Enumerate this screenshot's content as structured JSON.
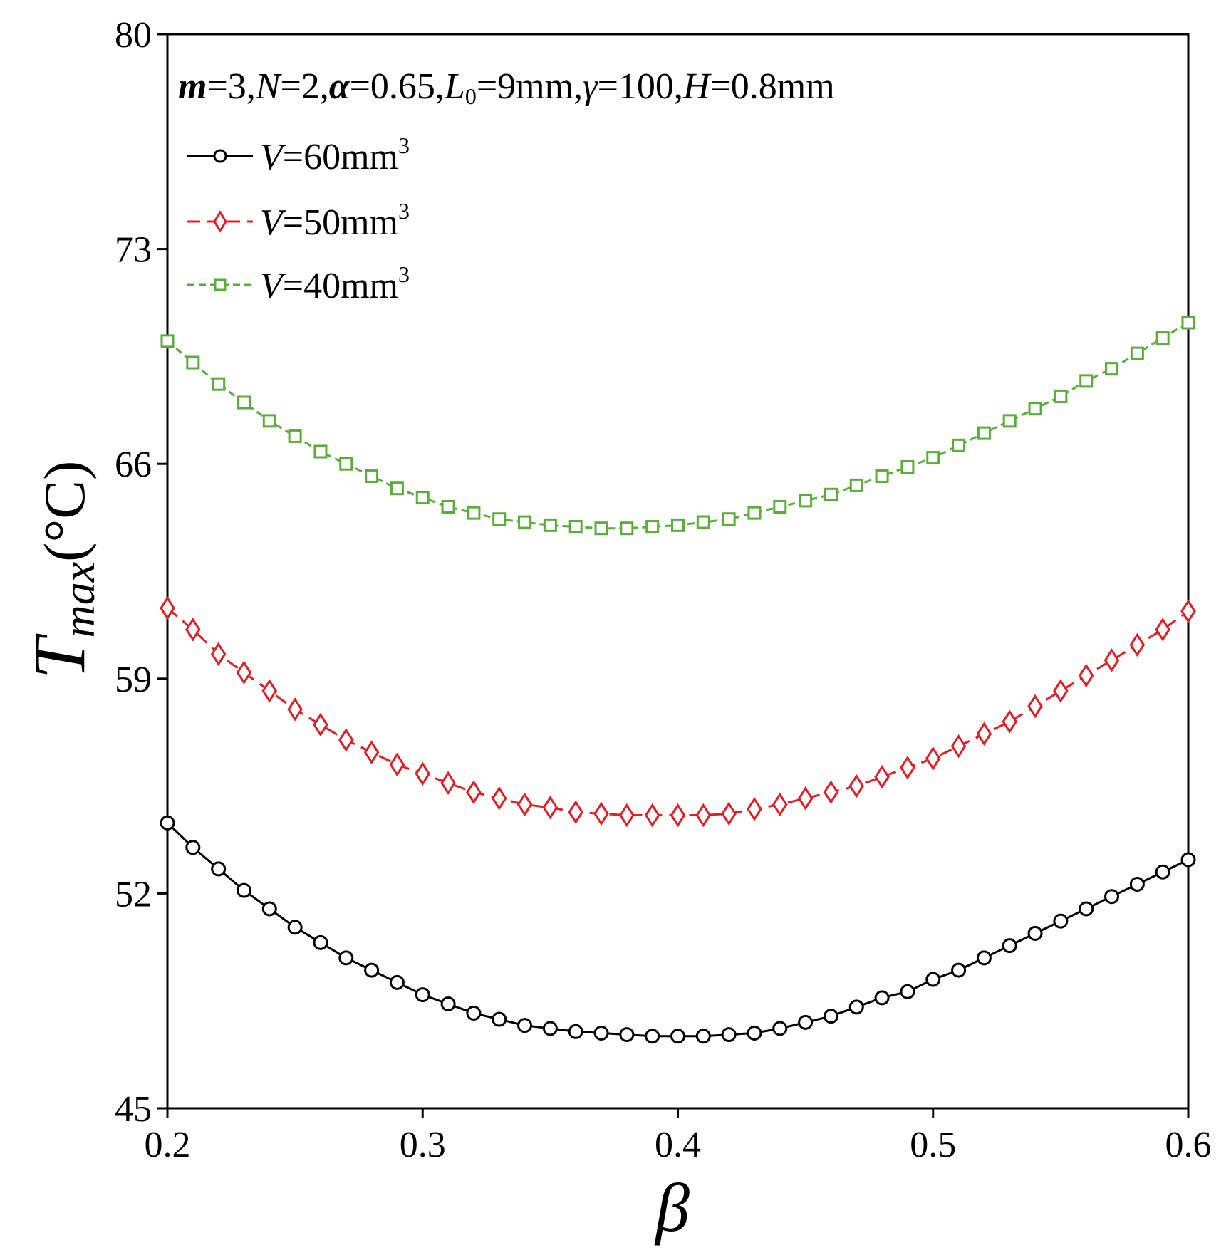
{
  "chart_data": {
    "type": "line",
    "title": "",
    "xlabel": "β",
    "ylabel_main": "T",
    "ylabel_sub": "max",
    "ylabel_unit": "(°C)",
    "xlim": [
      0.2,
      0.6
    ],
    "ylim": [
      45,
      80
    ],
    "x_ticks": [
      0.2,
      0.3,
      0.4,
      0.5,
      0.6
    ],
    "x_tick_labels": [
      "0.2",
      "0.3",
      "0.4",
      "0.5",
      "0.6"
    ],
    "y_ticks": [
      45,
      52,
      59,
      66,
      73,
      80
    ],
    "y_tick_labels": [
      "45",
      "52",
      "59",
      "66",
      "73",
      "80"
    ],
    "grid": false,
    "legend_position": "top-left",
    "annotation": {
      "parts": [
        {
          "text": "m",
          "style": "italic"
        },
        {
          "text": "=3,",
          "style": "normal"
        },
        {
          "text": "N",
          "style": "italic"
        },
        {
          "text": "=2,",
          "style": "normal"
        },
        {
          "text": "α",
          "style": "italic"
        },
        {
          "text": "=0.65,",
          "style": "normal"
        },
        {
          "text": "L",
          "style": "italic"
        },
        {
          "text": "0",
          "style": "sub"
        },
        {
          "text": "=9mm,",
          "style": "normal"
        },
        {
          "text": "γ",
          "style": "italic"
        },
        {
          "text": "=100,",
          "style": "normal"
        },
        {
          "text": "H",
          "style": "italic"
        },
        {
          "text": "=0.8mm",
          "style": "normal"
        }
      ]
    },
    "x": [
      0.2,
      0.21,
      0.22,
      0.23,
      0.24,
      0.25,
      0.26,
      0.27,
      0.28,
      0.29,
      0.3,
      0.31,
      0.32,
      0.33,
      0.34,
      0.35,
      0.36,
      0.37,
      0.38,
      0.39,
      0.4,
      0.41,
      0.42,
      0.43,
      0.44,
      0.45,
      0.46,
      0.47,
      0.48,
      0.49,
      0.5,
      0.51,
      0.52,
      0.53,
      0.54,
      0.55,
      0.56,
      0.57,
      0.58,
      0.59,
      0.6
    ],
    "series": [
      {
        "name": "V=60mm3",
        "legend_var": "V",
        "legend_value": "=60mm",
        "legend_sup": "3",
        "color": "#000000",
        "marker": "circle",
        "line_style": "solid",
        "values": [
          54.3,
          53.5,
          52.8,
          52.1,
          51.5,
          50.9,
          50.4,
          49.9,
          49.5,
          49.1,
          48.7,
          48.4,
          48.1,
          47.9,
          47.7,
          47.6,
          47.5,
          47.45,
          47.4,
          47.35,
          47.35,
          47.35,
          47.4,
          47.45,
          47.6,
          47.8,
          48.0,
          48.3,
          48.6,
          48.8,
          49.2,
          49.5,
          49.9,
          50.3,
          50.7,
          51.1,
          51.5,
          51.9,
          52.3,
          52.7,
          53.1
        ]
      },
      {
        "name": "V=50mm3",
        "legend_var": "V",
        "legend_value": "=50mm",
        "legend_sup": "3",
        "color": "#e51c23",
        "marker": "diamond",
        "line_style": "dashed",
        "values": [
          61.3,
          60.6,
          59.8,
          59.2,
          58.6,
          58.0,
          57.5,
          57.0,
          56.6,
          56.2,
          55.9,
          55.6,
          55.3,
          55.1,
          54.9,
          54.8,
          54.65,
          54.6,
          54.55,
          54.55,
          54.55,
          54.55,
          54.6,
          54.75,
          54.9,
          55.1,
          55.3,
          55.5,
          55.8,
          56.1,
          56.4,
          56.8,
          57.2,
          57.6,
          58.1,
          58.6,
          59.1,
          59.6,
          60.1,
          60.6,
          61.2
        ]
      },
      {
        "name": "V=40mm3",
        "legend_var": "V",
        "legend_value": "=40mm",
        "legend_sup": "3",
        "color": "#5aad38",
        "marker": "square",
        "line_style": "dashed",
        "values": [
          70.0,
          69.3,
          68.6,
          68.0,
          67.4,
          66.9,
          66.4,
          66.0,
          65.6,
          65.2,
          64.9,
          64.6,
          64.4,
          64.2,
          64.1,
          64.0,
          63.95,
          63.9,
          63.9,
          63.95,
          64.0,
          64.1,
          64.2,
          64.4,
          64.6,
          64.8,
          65.0,
          65.3,
          65.6,
          65.9,
          66.2,
          66.6,
          67.0,
          67.4,
          67.8,
          68.2,
          68.7,
          69.1,
          69.6,
          70.1,
          70.6
        ]
      }
    ]
  }
}
